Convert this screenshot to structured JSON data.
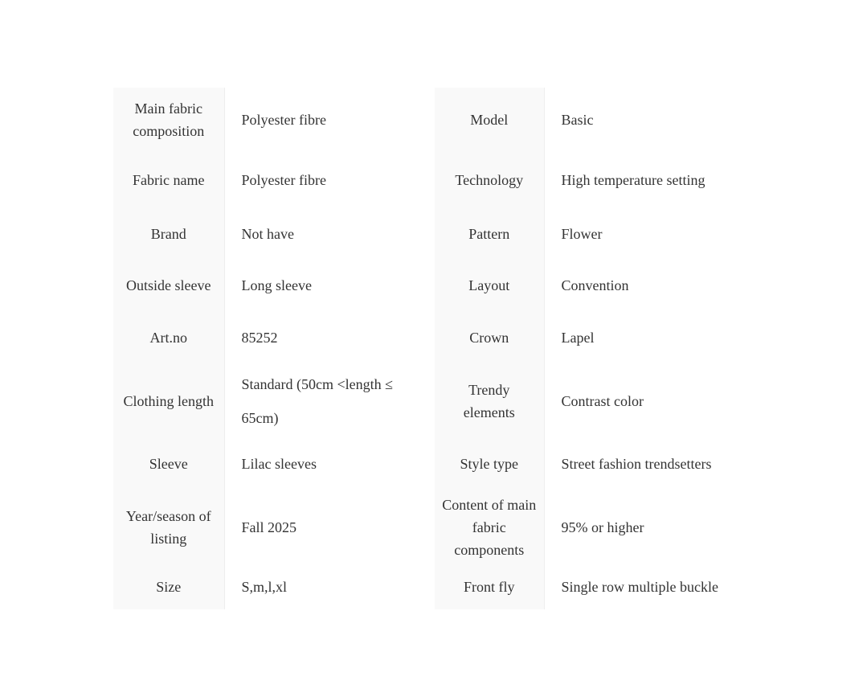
{
  "rows": [
    {
      "label1": "Main fabric composition",
      "value1": "Polyester fibre",
      "label2": "Model",
      "value2": "Basic"
    },
    {
      "label1": "Fabric name",
      "value1": "Polyester fibre",
      "label2": "Technology",
      "value2": "High temperature setting"
    },
    {
      "label1": "Brand",
      "value1": "Not have",
      "label2": "Pattern",
      "value2": "Flower"
    },
    {
      "label1": "Outside sleeve",
      "value1": "Long sleeve",
      "label2": "Layout",
      "value2": "Convention"
    },
    {
      "label1": "Art.no",
      "value1": "85252",
      "label2": "Crown",
      "value2": "Lapel"
    },
    {
      "label1": "Clothing length",
      "value1": "Standard (50cm <length  ≤ 65cm)",
      "label2": "Trendy elements",
      "value2": "Contrast color"
    },
    {
      "label1": "Sleeve",
      "value1": "Lilac sleeves",
      "label2": "Style type",
      "value2": "Street fashion trendsetters"
    },
    {
      "label1": "Year/season of listing",
      "value1": "Fall 2025",
      "label2": "Content of main fabric components",
      "value2": "95% or higher"
    },
    {
      "label1": "Size",
      "value1": "S,m,l,xl",
      "label2": "Front fly",
      "value2": "Single row multiple buckle"
    }
  ]
}
